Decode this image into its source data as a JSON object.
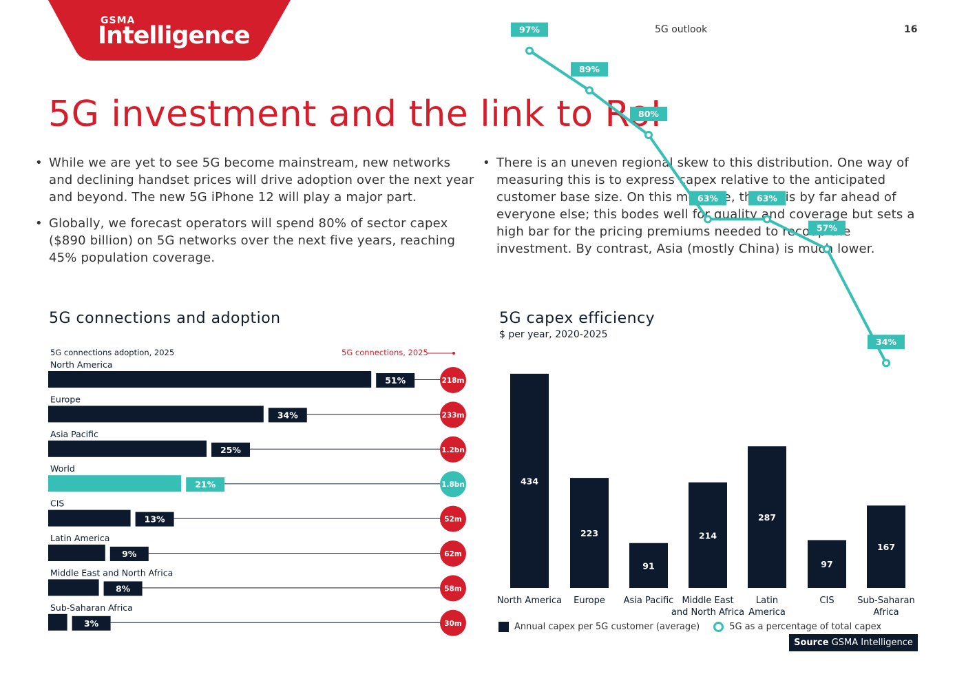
{
  "header": {
    "logo_small": "GSMA",
    "logo_big": "Intelligence",
    "section": "5G outlook",
    "page_number": "16",
    "brand_red": "#d51e2b"
  },
  "title": "5G investment and the link to RoI",
  "bullets_left": [
    "While we are yet to see 5G become mainstream, new networks and declining handset prices will drive adoption over the next year and beyond. The new 5G iPhone 12 will play a major part.",
    "Globally, we forecast operators will spend 80% of sector capex ($890 billion) on 5G networks over the next five years, reaching 45% population coverage."
  ],
  "bullets_right": [
    "There is an uneven regional skew to this distribution. One way of measuring this is to express capex relative to the anticipated customer base size. On this measure, the US is by far ahead of everyone else; this bodes well for quality and coverage but sets a high bar for the pricing premiums needed to recoup the investment. By contrast, Asia (mostly China) is much lower."
  ],
  "left_chart": {
    "title": "5G connections and adoption",
    "legend_adoption": "5G connections adoption, 2025",
    "legend_connections": "5G connections, 2025"
  },
  "right_chart": {
    "title": "5G capex efficiency",
    "subtitle": "$ per year, 2020-2025",
    "legend_bars": "Annual capex per 5G customer (average)",
    "legend_line": "5G as a percentage of total capex"
  },
  "source": {
    "label": "Source",
    "text": "GSMA Intelligence"
  },
  "colors": {
    "navy": "#0d1a2e",
    "teal": "#37bfb6",
    "red": "#d51e2b"
  },
  "chart_data": [
    {
      "type": "bar",
      "orientation": "horizontal",
      "title": "5G connections and adoption",
      "categories": [
        "North America",
        "Europe",
        "Asia Pacific",
        "World",
        "CIS",
        "Latin America",
        "Middle East and North Africa",
        "Sub-Saharan Africa"
      ],
      "series": [
        {
          "name": "5G connections adoption, 2025",
          "values": [
            51,
            34,
            25,
            21,
            13,
            9,
            8,
            3
          ],
          "labels": [
            "51%",
            "34%",
            "25%",
            "21%",
            "13%",
            "9%",
            "8%",
            "3%"
          ]
        },
        {
          "name": "5G connections, 2025",
          "labels": [
            "218m",
            "233m",
            "1.2bn",
            "1.8bn",
            "52m",
            "62m",
            "58m",
            "30m"
          ]
        }
      ],
      "highlight_category": "World"
    },
    {
      "type": "bar",
      "title": "5G capex efficiency",
      "subtitle": "$ per year, 2020-2025",
      "categories": [
        "North America",
        "Europe",
        "Asia Pacific",
        "Middle East and North Africa",
        "Latin America",
        "CIS",
        "Sub-Saharan Africa"
      ],
      "category_lines": [
        [
          "North America"
        ],
        [
          "Europe"
        ],
        [
          "Asia Pacific"
        ],
        [
          "Middle East",
          "and North Africa"
        ],
        [
          "Latin",
          "America"
        ],
        [
          "CIS"
        ],
        [
          "Sub-Saharan",
          "Africa"
        ]
      ],
      "series": [
        {
          "name": "Annual capex per 5G customer (average)",
          "type": "bar",
          "values": [
            434,
            223,
            91,
            214,
            287,
            97,
            167
          ]
        },
        {
          "name": "5G as a percentage of total capex",
          "type": "line",
          "values": [
            97,
            89,
            80,
            63,
            63,
            57,
            34
          ],
          "labels": [
            "97%",
            "89%",
            "80%",
            "63%",
            "63%",
            "57%",
            "34%"
          ]
        }
      ]
    }
  ]
}
